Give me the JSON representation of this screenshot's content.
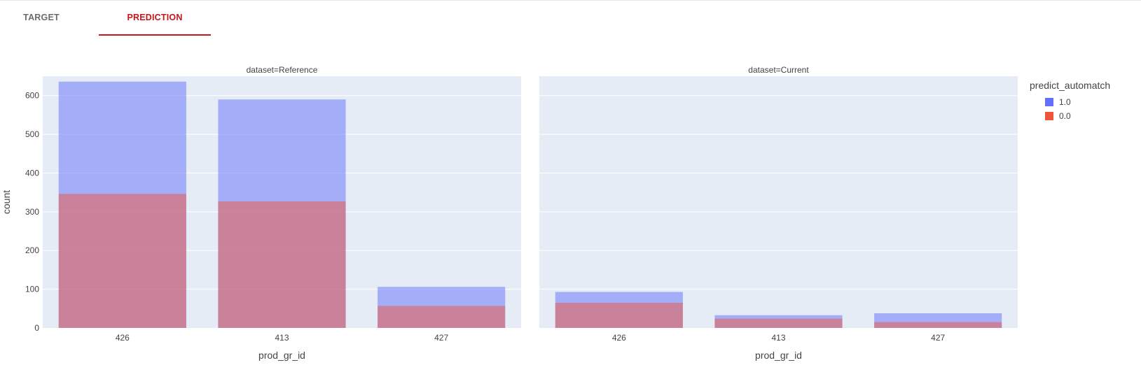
{
  "tabs": [
    {
      "label": "TARGET",
      "active": false
    },
    {
      "label": "PREDICTION",
      "active": true
    }
  ],
  "colors": {
    "tab_active": "#c4161c",
    "tab_inactive": "#6b6b6b",
    "plot_bg": "#e5ecf6",
    "grid": "#ffffff",
    "series_1": "#636efa",
    "series_0": "#ef553b"
  },
  "chart_data": {
    "type": "bar",
    "barmode": "overlay",
    "ylabel": "count",
    "xlabel": "prod_gr_id",
    "ylim": [
      0,
      650
    ],
    "yticks": [
      0,
      100,
      200,
      300,
      400,
      500,
      600
    ],
    "legend_title": "predict_automatch",
    "legend_position": "top-right",
    "grid": true,
    "categories": [
      "426",
      "413",
      "427"
    ],
    "facets": [
      {
        "title": "dataset=Reference",
        "series": [
          {
            "name": "1.0",
            "values": [
              636,
              590,
              106
            ]
          },
          {
            "name": "0.0",
            "values": [
              346,
              327,
              57
            ]
          }
        ]
      },
      {
        "title": "dataset=Current",
        "series": [
          {
            "name": "1.0",
            "values": [
              93,
              33,
              38
            ]
          },
          {
            "name": "0.0",
            "values": [
              65,
              24,
              15
            ]
          }
        ]
      }
    ]
  }
}
